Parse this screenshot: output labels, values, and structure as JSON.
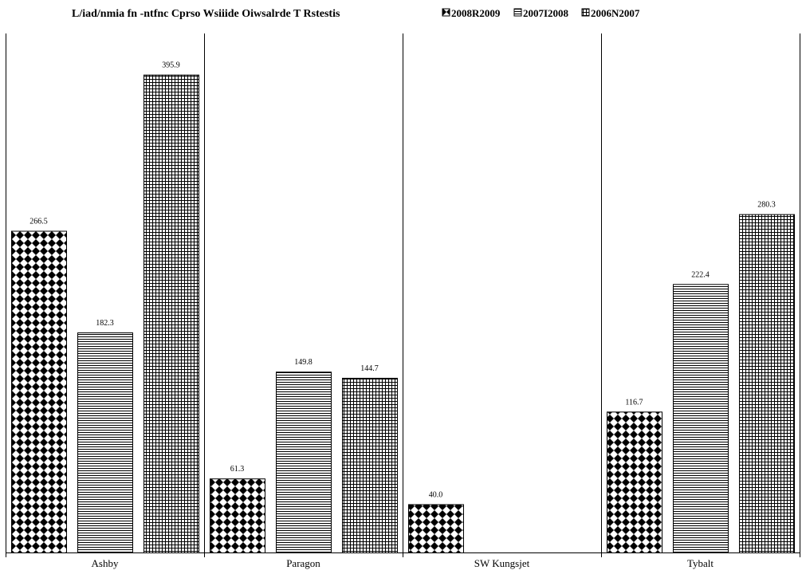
{
  "chart_data": {
    "type": "bar",
    "title": "L/iad/nmia fn -ntfnc Cprso Wsiiide Oiwsalrde T Rstestis",
    "xlabel": "",
    "ylabel": "",
    "categories": [
      "Ashby",
      "Paragon",
      "SW Kungsjet",
      "Tybalt"
    ],
    "series": [
      {
        "name": "2008R2009",
        "pattern": "diamond",
        "values": [
          266.5,
          61.3,
          40.0,
          116.7
        ]
      },
      {
        "name": "2007I2008",
        "pattern": "hlines",
        "values": [
          182.3,
          149.8,
          null,
          222.4
        ]
      },
      {
        "name": "2006N2007",
        "pattern": "grid",
        "values": [
          395.9,
          144.7,
          null,
          280.3
        ]
      }
    ],
    "value_labels": [
      [
        "266.5",
        "61.3",
        "40.0",
        "116.7"
      ],
      [
        "182.3",
        "149.8",
        "",
        "222.4"
      ],
      [
        "395.9",
        "144.7",
        "",
        "280.3"
      ]
    ],
    "ylim": [
      0,
      430
    ],
    "grid": false,
    "legend_position": "top-right"
  }
}
